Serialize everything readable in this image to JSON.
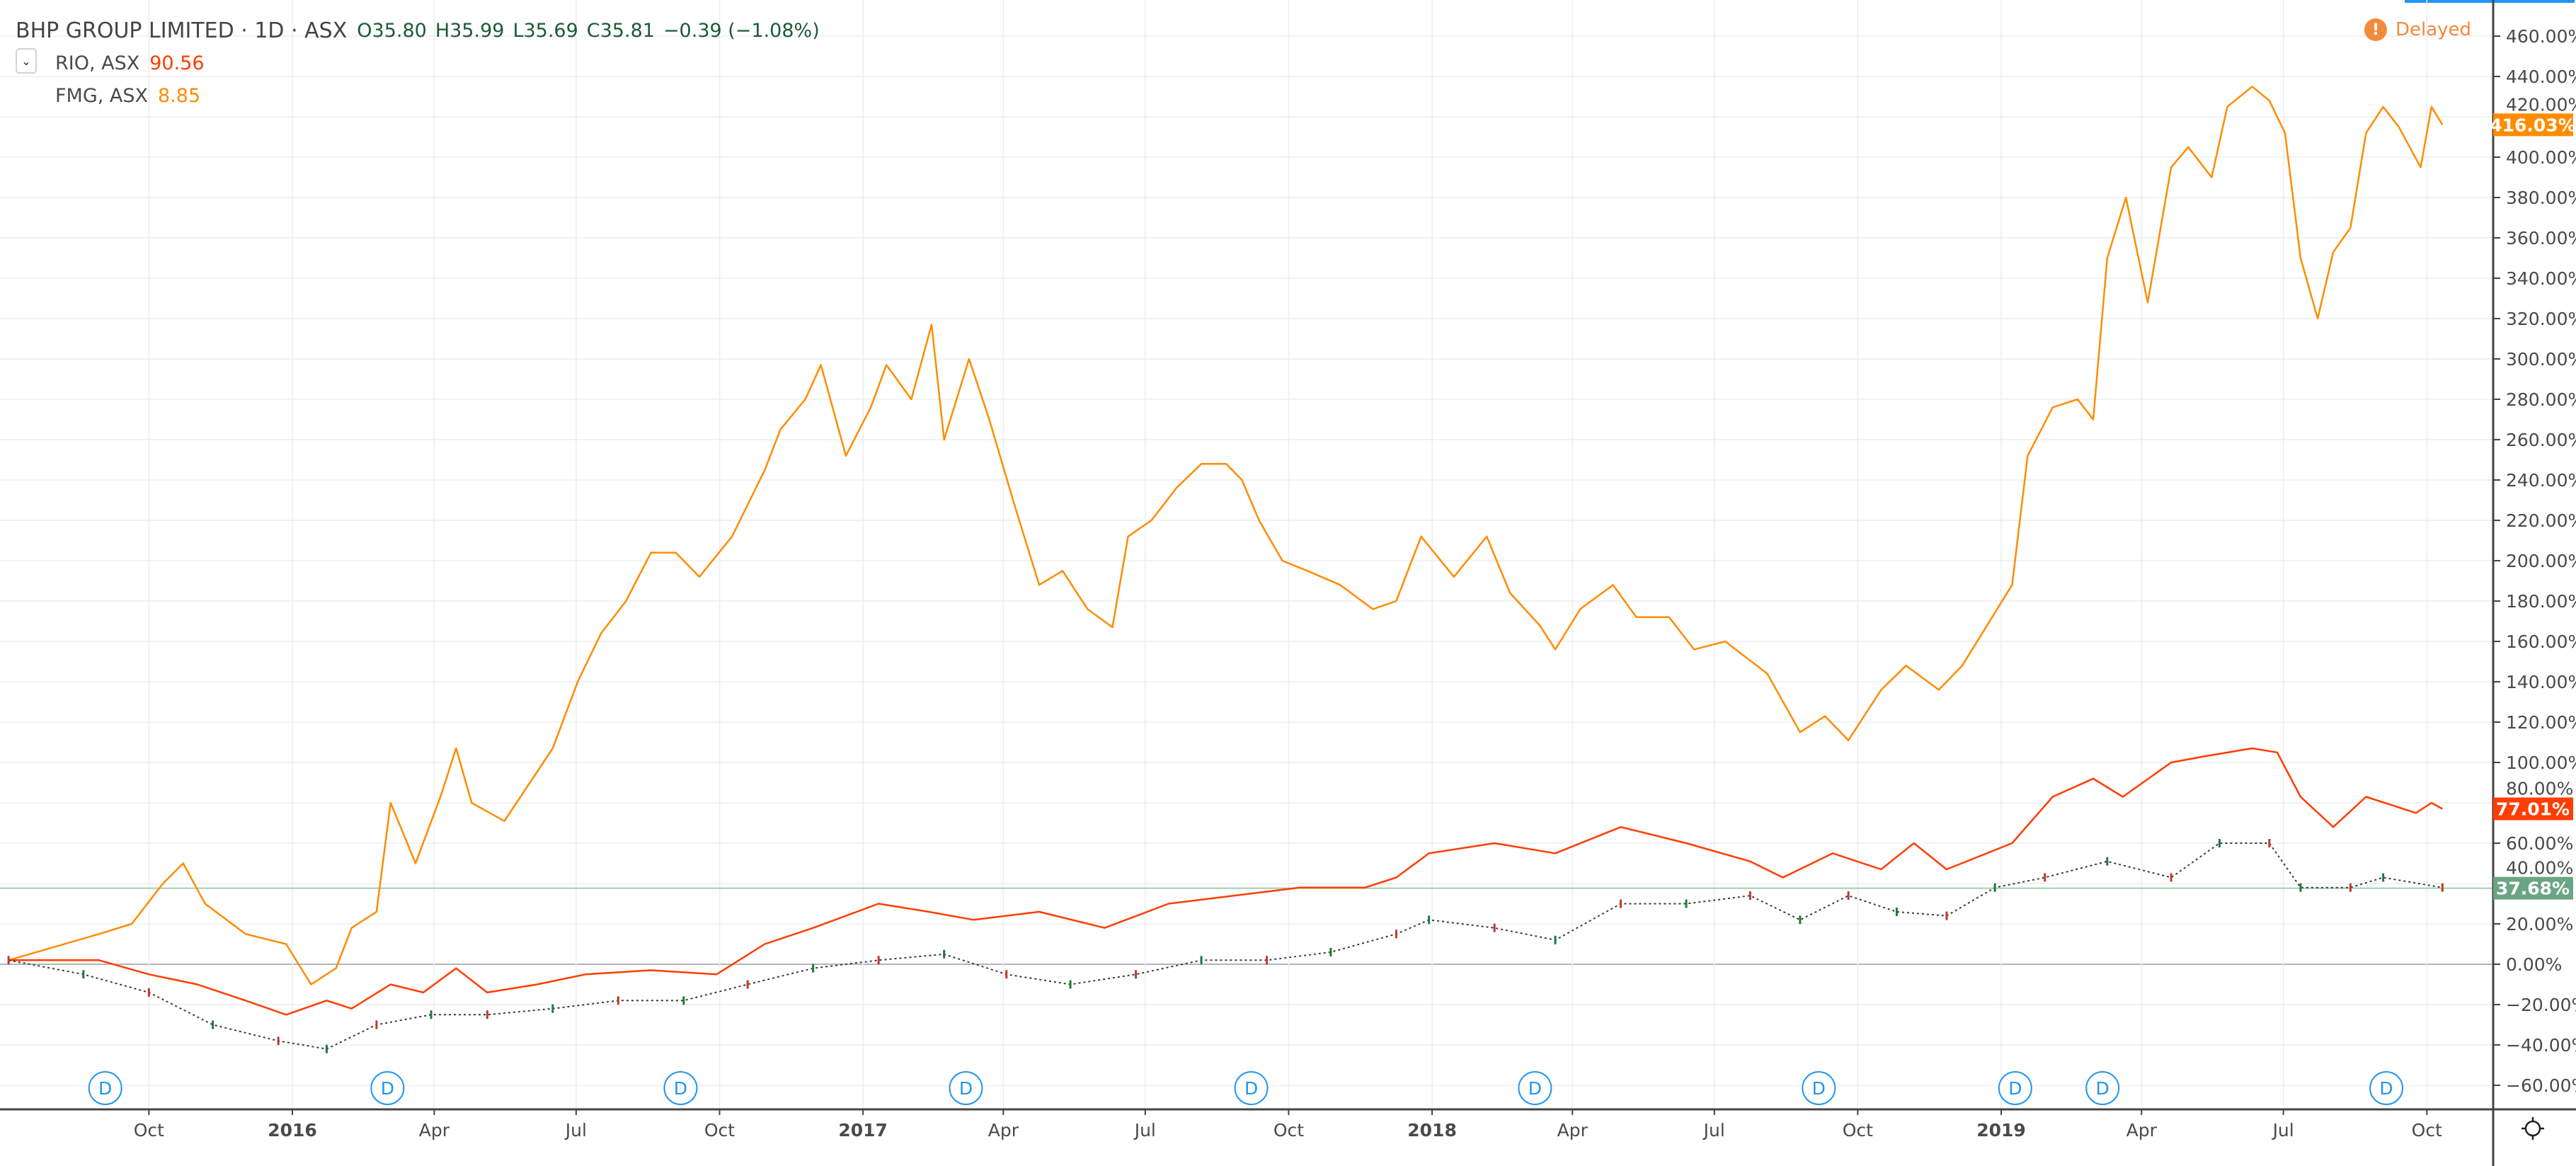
{
  "header": {
    "title": "BHP GROUP LIMITED · 1D · ASX",
    "open": "O35.80",
    "high": "H35.99",
    "low": "L35.69",
    "close": "C35.81",
    "change": "−0.39 (−1.08%)",
    "compare": [
      {
        "symbol": "RIO, ASX",
        "value": "90.56",
        "color": "#ff3d00"
      },
      {
        "symbol": "FMG, ASX",
        "value": "8.85",
        "color": "#ff8c00"
      }
    ],
    "status": "Delayed"
  },
  "chart_data": {
    "type": "line",
    "title": "",
    "xlabel": "",
    "ylabel": "",
    "ylim": [
      -70,
      470
    ],
    "y_ticks": [
      "460.00%",
      "440.00%",
      "420.00%",
      "400.00%",
      "380.00%",
      "360.00%",
      "340.00%",
      "320.00%",
      "300.00%",
      "280.00%",
      "260.00%",
      "240.00%",
      "220.00%",
      "200.00%",
      "180.00%",
      "160.00%",
      "140.00%",
      "120.00%",
      "100.00%",
      "80.00%",
      "60.00%",
      "40.00%",
      "20.00%",
      "0.00%",
      "−20.00%",
      "−40.00%",
      "−60.00%"
    ],
    "y_tick_values": [
      460,
      440,
      420,
      400,
      380,
      360,
      340,
      320,
      300,
      280,
      260,
      240,
      220,
      200,
      180,
      160,
      140,
      120,
      100,
      80,
      60,
      40,
      20,
      0,
      -20,
      -40,
      -60
    ],
    "x_ticks": [
      {
        "label": "Oct",
        "date": "2015-10-01",
        "bold": false
      },
      {
        "label": "2016",
        "date": "2016-01-01",
        "bold": true
      },
      {
        "label": "Apr",
        "date": "2016-04-01",
        "bold": false
      },
      {
        "label": "Jul",
        "date": "2016-07-01",
        "bold": false
      },
      {
        "label": "Oct",
        "date": "2016-10-01",
        "bold": false
      },
      {
        "label": "2017",
        "date": "2017-01-01",
        "bold": true
      },
      {
        "label": "Apr",
        "date": "2017-04-01",
        "bold": false
      },
      {
        "label": "Jul",
        "date": "2017-07-01",
        "bold": false
      },
      {
        "label": "Oct",
        "date": "2017-10-01",
        "bold": false
      },
      {
        "label": "2018",
        "date": "2018-01-01",
        "bold": true
      },
      {
        "label": "Apr",
        "date": "2018-04-01",
        "bold": false
      },
      {
        "label": "Jul",
        "date": "2018-07-01",
        "bold": false
      },
      {
        "label": "Oct",
        "date": "2018-10-01",
        "bold": false
      },
      {
        "label": "2019",
        "date": "2019-01-01",
        "bold": true
      },
      {
        "label": "Apr",
        "date": "2019-04-01",
        "bold": false
      },
      {
        "label": "Jul",
        "date": "2019-07-01",
        "bold": false
      },
      {
        "label": "Oct",
        "date": "2019-10-01",
        "bold": false
      }
    ],
    "dividend_markers": {
      "label": "D",
      "dates": [
        "2015-09-03",
        "2016-03-02",
        "2016-09-06",
        "2017-03-08",
        "2017-09-07",
        "2018-03-08",
        "2018-09-06",
        "2019-01-10",
        "2019-03-07",
        "2019-09-05"
      ]
    },
    "last_labels": [
      {
        "series": "FMG, ASX",
        "text": "416.03%",
        "value": 416.03,
        "color": "#ff8c00"
      },
      {
        "series": "RIO, ASX",
        "text": "77.01%",
        "value": 77.01,
        "color": "#ff3d00"
      },
      {
        "series": "BHP GROUP LIMITED",
        "text": "37.68%",
        "value": 37.68,
        "color": "#6ba583"
      }
    ],
    "series": [
      {
        "name": "FMG, ASX",
        "color": "#ff8c00",
        "style": "line",
        "points": [
          [
            "2015-07-03",
            2
          ],
          [
            "2015-08-30",
            15
          ],
          [
            "2015-09-20",
            20
          ],
          [
            "2015-10-10",
            40
          ],
          [
            "2015-10-23",
            50
          ],
          [
            "2015-11-06",
            30
          ],
          [
            "2015-12-02",
            15
          ],
          [
            "2015-12-28",
            10
          ],
          [
            "2016-01-13",
            -10
          ],
          [
            "2016-01-29",
            -2
          ],
          [
            "2016-02-08",
            18
          ],
          [
            "2016-02-24",
            26
          ],
          [
            "2016-03-04",
            80
          ],
          [
            "2016-03-20",
            50
          ],
          [
            "2016-04-05",
            83
          ],
          [
            "2016-04-15",
            107
          ],
          [
            "2016-04-25",
            80
          ],
          [
            "2016-05-16",
            71
          ],
          [
            "2016-06-16",
            107
          ],
          [
            "2016-07-02",
            140
          ],
          [
            "2016-07-17",
            164
          ],
          [
            "2016-08-02",
            180
          ],
          [
            "2016-08-18",
            204
          ],
          [
            "2016-09-03",
            204
          ],
          [
            "2016-09-18",
            192
          ],
          [
            "2016-10-09",
            212
          ],
          [
            "2016-10-30",
            245
          ],
          [
            "2016-11-09",
            265
          ],
          [
            "2016-11-25",
            280
          ],
          [
            "2016-12-05",
            297
          ],
          [
            "2016-12-21",
            252
          ],
          [
            "2017-01-06",
            276
          ],
          [
            "2017-01-16",
            297
          ],
          [
            "2017-02-01",
            280
          ],
          [
            "2017-02-14",
            317
          ],
          [
            "2017-02-22",
            260
          ],
          [
            "2017-03-10",
            300
          ],
          [
            "2017-03-23",
            270
          ],
          [
            "2017-04-08",
            228
          ],
          [
            "2017-04-24",
            188
          ],
          [
            "2017-05-09",
            195
          ],
          [
            "2017-05-25",
            176
          ],
          [
            "2017-06-10",
            167
          ],
          [
            "2017-06-20",
            212
          ],
          [
            "2017-07-05",
            220
          ],
          [
            "2017-07-21",
            236
          ],
          [
            "2017-08-06",
            248
          ],
          [
            "2017-08-22",
            248
          ],
          [
            "2017-09-01",
            240
          ],
          [
            "2017-09-12",
            220
          ],
          [
            "2017-09-27",
            200
          ],
          [
            "2017-10-13",
            195
          ],
          [
            "2017-11-03",
            188
          ],
          [
            "2017-11-24",
            176
          ],
          [
            "2017-12-09",
            180
          ],
          [
            "2017-12-25",
            212
          ],
          [
            "2018-01-15",
            192
          ],
          [
            "2018-02-05",
            212
          ],
          [
            "2018-02-20",
            184
          ],
          [
            "2018-03-11",
            168
          ],
          [
            "2018-03-21",
            156
          ],
          [
            "2018-04-06",
            176
          ],
          [
            "2018-04-27",
            188
          ],
          [
            "2018-05-12",
            172
          ],
          [
            "2018-06-02",
            172
          ],
          [
            "2018-06-18",
            156
          ],
          [
            "2018-07-08",
            160
          ],
          [
            "2018-08-04",
            144
          ],
          [
            "2018-08-25",
            115
          ],
          [
            "2018-09-10",
            123
          ],
          [
            "2018-09-25",
            111
          ],
          [
            "2018-10-16",
            136
          ],
          [
            "2018-11-01",
            148
          ],
          [
            "2018-11-22",
            136
          ],
          [
            "2018-12-07",
            148
          ],
          [
            "2018-12-23",
            168
          ],
          [
            "2019-01-08",
            188
          ],
          [
            "2019-01-18",
            252
          ],
          [
            "2019-02-03",
            276
          ],
          [
            "2019-02-19",
            280
          ],
          [
            "2019-03-01",
            270
          ],
          [
            "2019-03-10",
            350
          ],
          [
            "2019-03-22",
            380
          ],
          [
            "2019-04-05",
            328
          ],
          [
            "2019-04-20",
            395
          ],
          [
            "2019-05-01",
            405
          ],
          [
            "2019-05-16",
            390
          ],
          [
            "2019-05-26",
            425
          ],
          [
            "2019-06-11",
            435
          ],
          [
            "2019-06-22",
            428
          ],
          [
            "2019-07-02",
            412
          ],
          [
            "2019-07-12",
            350
          ],
          [
            "2019-07-23",
            320
          ],
          [
            "2019-08-02",
            353
          ],
          [
            "2019-08-13",
            365
          ],
          [
            "2019-08-23",
            412
          ],
          [
            "2019-09-03",
            425
          ],
          [
            "2019-09-13",
            415
          ],
          [
            "2019-09-27",
            395
          ],
          [
            "2019-10-04",
            425
          ],
          [
            "2019-10-11",
            416
          ]
        ]
      },
      {
        "name": "RIO, ASX",
        "color": "#ff3d00",
        "style": "line",
        "points": [
          [
            "2015-07-03",
            2
          ],
          [
            "2015-08-30",
            2
          ],
          [
            "2015-10-01",
            -5
          ],
          [
            "2015-11-01",
            -10
          ],
          [
            "2015-12-02",
            -18
          ],
          [
            "2015-12-28",
            -25
          ],
          [
            "2016-01-23",
            -18
          ],
          [
            "2016-02-08",
            -22
          ],
          [
            "2016-03-04",
            -10
          ],
          [
            "2016-03-25",
            -14
          ],
          [
            "2016-04-15",
            -2
          ],
          [
            "2016-05-05",
            -14
          ],
          [
            "2016-06-06",
            -10
          ],
          [
            "2016-07-07",
            -5
          ],
          [
            "2016-08-18",
            -3
          ],
          [
            "2016-09-29",
            -5
          ],
          [
            "2016-10-30",
            10
          ],
          [
            "2016-11-30",
            18
          ],
          [
            "2017-01-11",
            30
          ],
          [
            "2017-02-12",
            26
          ],
          [
            "2017-03-13",
            22
          ],
          [
            "2017-04-24",
            26
          ],
          [
            "2017-06-05",
            18
          ],
          [
            "2017-07-16",
            30
          ],
          [
            "2017-08-27",
            34
          ],
          [
            "2017-10-08",
            38
          ],
          [
            "2017-11-19",
            38
          ],
          [
            "2017-12-09",
            43
          ],
          [
            "2017-12-30",
            55
          ],
          [
            "2018-02-10",
            60
          ],
          [
            "2018-03-21",
            55
          ],
          [
            "2018-05-02",
            68
          ],
          [
            "2018-06-13",
            60
          ],
          [
            "2018-07-24",
            51
          ],
          [
            "2018-08-14",
            43
          ],
          [
            "2018-09-15",
            55
          ],
          [
            "2018-10-16",
            47
          ],
          [
            "2018-11-06",
            60
          ],
          [
            "2018-11-27",
            47
          ],
          [
            "2019-01-08",
            60
          ],
          [
            "2019-02-03",
            83
          ],
          [
            "2019-03-01",
            92
          ],
          [
            "2019-03-20",
            83
          ],
          [
            "2019-04-20",
            100
          ],
          [
            "2019-05-11",
            103
          ],
          [
            "2019-06-11",
            107
          ],
          [
            "2019-06-27",
            105
          ],
          [
            "2019-07-12",
            83
          ],
          [
            "2019-08-02",
            68
          ],
          [
            "2019-08-23",
            83
          ],
          [
            "2019-09-24",
            75
          ],
          [
            "2019-10-04",
            80
          ],
          [
            "2019-10-11",
            77
          ]
        ]
      },
      {
        "name": "BHP GROUP LIMITED",
        "color": "#3a3a3a",
        "style": "bars",
        "points": [
          [
            "2015-07-03",
            2
          ],
          [
            "2015-08-20",
            -5
          ],
          [
            "2015-10-01",
            -14
          ],
          [
            "2015-11-11",
            -30
          ],
          [
            "2015-12-23",
            -38
          ],
          [
            "2016-01-23",
            -42
          ],
          [
            "2016-02-24",
            -30
          ],
          [
            "2016-03-30",
            -25
          ],
          [
            "2016-05-05",
            -25
          ],
          [
            "2016-06-16",
            -22
          ],
          [
            "2016-07-28",
            -18
          ],
          [
            "2016-09-08",
            -18
          ],
          [
            "2016-10-19",
            -10
          ],
          [
            "2016-11-30",
            -2
          ],
          [
            "2017-01-11",
            2
          ],
          [
            "2017-02-22",
            5
          ],
          [
            "2017-04-03",
            -5
          ],
          [
            "2017-05-14",
            -10
          ],
          [
            "2017-06-25",
            -5
          ],
          [
            "2017-08-06",
            2
          ],
          [
            "2017-09-17",
            2
          ],
          [
            "2017-10-28",
            6
          ],
          [
            "2017-12-09",
            15
          ],
          [
            "2017-12-30",
            22
          ],
          [
            "2018-02-10",
            18
          ],
          [
            "2018-03-21",
            12
          ],
          [
            "2018-05-02",
            30
          ],
          [
            "2018-06-13",
            30
          ],
          [
            "2018-07-24",
            34
          ],
          [
            "2018-08-25",
            22
          ],
          [
            "2018-09-25",
            34
          ],
          [
            "2018-10-26",
            26
          ],
          [
            "2018-11-27",
            24
          ],
          [
            "2018-12-28",
            38
          ],
          [
            "2019-01-29",
            43
          ],
          [
            "2019-03-10",
            51
          ],
          [
            "2019-04-20",
            43
          ],
          [
            "2019-05-21",
            60
          ],
          [
            "2019-06-22",
            60
          ],
          [
            "2019-07-12",
            38
          ],
          [
            "2019-08-13",
            38
          ],
          [
            "2019-09-03",
            43
          ],
          [
            "2019-10-11",
            38
          ]
        ]
      }
    ],
    "grid": true
  }
}
